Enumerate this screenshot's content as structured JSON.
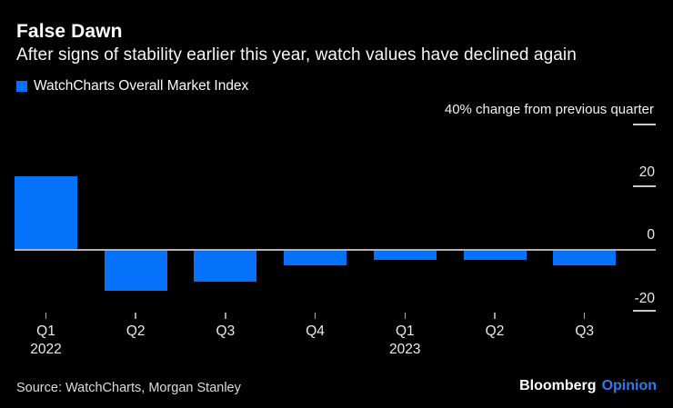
{
  "header": {
    "title": "False Dawn",
    "subtitle": "After signs of stability earlier this year, watch values have declined again"
  },
  "legend": {
    "label": "WatchCharts Overall Market Index",
    "swatch_color": "#0672fc"
  },
  "chart_data": {
    "type": "bar",
    "title": "False Dawn",
    "subtitle": "After signs of stability earlier this year, watch values have declined again",
    "unit_note": "40% change from previous quarter",
    "categories": [
      "Q1",
      "Q2",
      "Q3",
      "Q4",
      "Q1",
      "Q2",
      "Q3"
    ],
    "year_labels": [
      {
        "index": 0,
        "text": "2022"
      },
      {
        "index": 4,
        "text": "2023"
      }
    ],
    "series": [
      {
        "name": "WatchCharts Overall Market Index",
        "values": [
          23.3,
          -13.0,
          -9.9,
          -4.8,
          -2.9,
          -2.9,
          -4.8
        ]
      }
    ],
    "xlabel": "",
    "ylabel": "% change from previous quarter",
    "ylim": [
      -20,
      40
    ],
    "y_grid_ticks": [
      40,
      20,
      0,
      -20
    ],
    "y_tick_labels": [
      "20",
      "0",
      "-20"
    ],
    "bar_color": "#0672fc",
    "legend_position": "top-left",
    "grid": "right-side-ticks-and-zero-baseline"
  },
  "footer": {
    "source": "Source: WatchCharts, Morgan Stanley",
    "brand": "Bloomberg",
    "brand_suffix": "Opinion"
  }
}
